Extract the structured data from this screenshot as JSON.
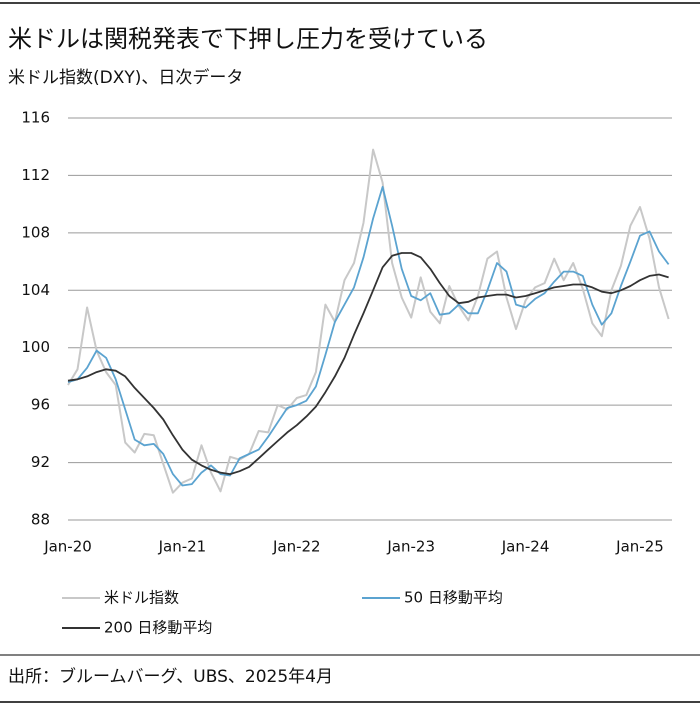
{
  "chart_data": {
    "type": "line",
    "title": "米ドルは関税発表で下押し圧力を受けている",
    "subtitle": "米ドル指数(DXY)、日次データ",
    "source": "出所：ブルームバーグ、UBS、2025年4月",
    "x": [
      2020,
      2020.0833,
      2020.1667,
      2020.25,
      2020.3333,
      2020.4167,
      2020.5,
      2020.5833,
      2020.6667,
      2020.75,
      2020.8333,
      2020.9167,
      2021,
      2021.0833,
      2021.1667,
      2021.25,
      2021.3333,
      2021.4167,
      2021.5,
      2021.5833,
      2021.6667,
      2021.75,
      2021.8333,
      2021.9167,
      2022,
      2022.0833,
      2022.1667,
      2022.25,
      2022.3333,
      2022.4167,
      2022.5,
      2022.5833,
      2022.6667,
      2022.75,
      2022.8333,
      2022.9167,
      2023,
      2023.0833,
      2023.1667,
      2023.25,
      2023.3333,
      2023.4167,
      2023.5,
      2023.5833,
      2023.6667,
      2023.75,
      2023.8333,
      2023.9167,
      2024,
      2024.0833,
      2024.1667,
      2024.25,
      2024.3333,
      2024.4167,
      2024.5,
      2024.5833,
      2024.6667,
      2024.75,
      2024.8333,
      2024.9167,
      2025,
      2025.0833,
      2025.1667,
      2025.25
    ],
    "series": [
      {
        "name": "米ドル指数",
        "color": "#c8c8c8",
        "values": [
          97.4,
          98.5,
          102.8,
          99.8,
          98.3,
          97.4,
          93.4,
          92.7,
          94.0,
          93.9,
          91.9,
          89.9,
          90.6,
          90.9,
          93.2,
          91.3,
          90.0,
          92.4,
          92.2,
          92.6,
          94.2,
          94.1,
          96.0,
          95.7,
          96.5,
          96.7,
          98.3,
          103.0,
          101.8,
          104.7,
          105.9,
          108.7,
          113.8,
          111.5,
          105.9,
          103.5,
          102.1,
          104.9,
          102.5,
          101.7,
          104.3,
          102.9,
          101.9,
          103.6,
          106.2,
          106.7,
          103.5,
          101.3,
          103.3,
          104.2,
          104.5,
          106.2,
          104.7,
          105.9,
          104.1,
          101.7,
          100.8,
          104.0,
          105.7,
          108.5,
          109.8,
          107.6,
          104.2,
          102.0
        ]
      },
      {
        "name": "50 日移動平均",
        "color": "#5ba3d0",
        "values": [
          97.6,
          97.8,
          98.6,
          99.8,
          99.3,
          97.8,
          95.7,
          93.6,
          93.2,
          93.3,
          92.6,
          91.2,
          90.4,
          90.5,
          91.3,
          91.8,
          91.2,
          91.1,
          92.3,
          92.6,
          92.9,
          93.8,
          94.8,
          95.8,
          96.0,
          96.3,
          97.3,
          99.5,
          101.8,
          103.0,
          104.2,
          106.3,
          109.0,
          111.2,
          108.5,
          105.5,
          103.6,
          103.3,
          103.8,
          102.3,
          102.4,
          103.0,
          102.4,
          102.4,
          104.0,
          105.9,
          105.3,
          103.0,
          102.8,
          103.4,
          103.8,
          104.6,
          105.3,
          105.3,
          105.0,
          103.0,
          101.6,
          102.4,
          104.3,
          106.0,
          107.8,
          108.1,
          106.7,
          105.8
        ]
      },
      {
        "name": "200 日移動平均",
        "color": "#333333",
        "values": [
          97.7,
          97.8,
          98.0,
          98.3,
          98.5,
          98.4,
          98.0,
          97.2,
          96.5,
          95.8,
          95.0,
          93.9,
          92.9,
          92.2,
          91.8,
          91.5,
          91.3,
          91.2,
          91.4,
          91.7,
          92.3,
          92.9,
          93.5,
          94.1,
          94.6,
          95.2,
          95.9,
          96.9,
          98.0,
          99.3,
          100.9,
          102.4,
          104.0,
          105.6,
          106.4,
          106.6,
          106.6,
          106.3,
          105.5,
          104.5,
          103.6,
          103.1,
          103.2,
          103.5,
          103.6,
          103.7,
          103.7,
          103.5,
          103.6,
          103.8,
          104.0,
          104.2,
          104.3,
          104.4,
          104.4,
          104.2,
          103.9,
          103.8,
          104.0,
          104.3,
          104.7,
          105.0,
          105.1,
          104.9
        ]
      }
    ],
    "xlim": [
      2020,
      2025.28
    ],
    "xticks": [
      {
        "value": 2020,
        "label": "Jan-20"
      },
      {
        "value": 2021,
        "label": "Jan-21"
      },
      {
        "value": 2022,
        "label": "Jan-22"
      },
      {
        "value": 2023,
        "label": "Jan-23"
      },
      {
        "value": 2024,
        "label": "Jan-24"
      },
      {
        "value": 2025,
        "label": "Jan-25"
      }
    ],
    "ylim": [
      88,
      116
    ],
    "yticks": [
      88,
      92,
      96,
      100,
      104,
      108,
      112,
      116
    ],
    "grid": true
  }
}
